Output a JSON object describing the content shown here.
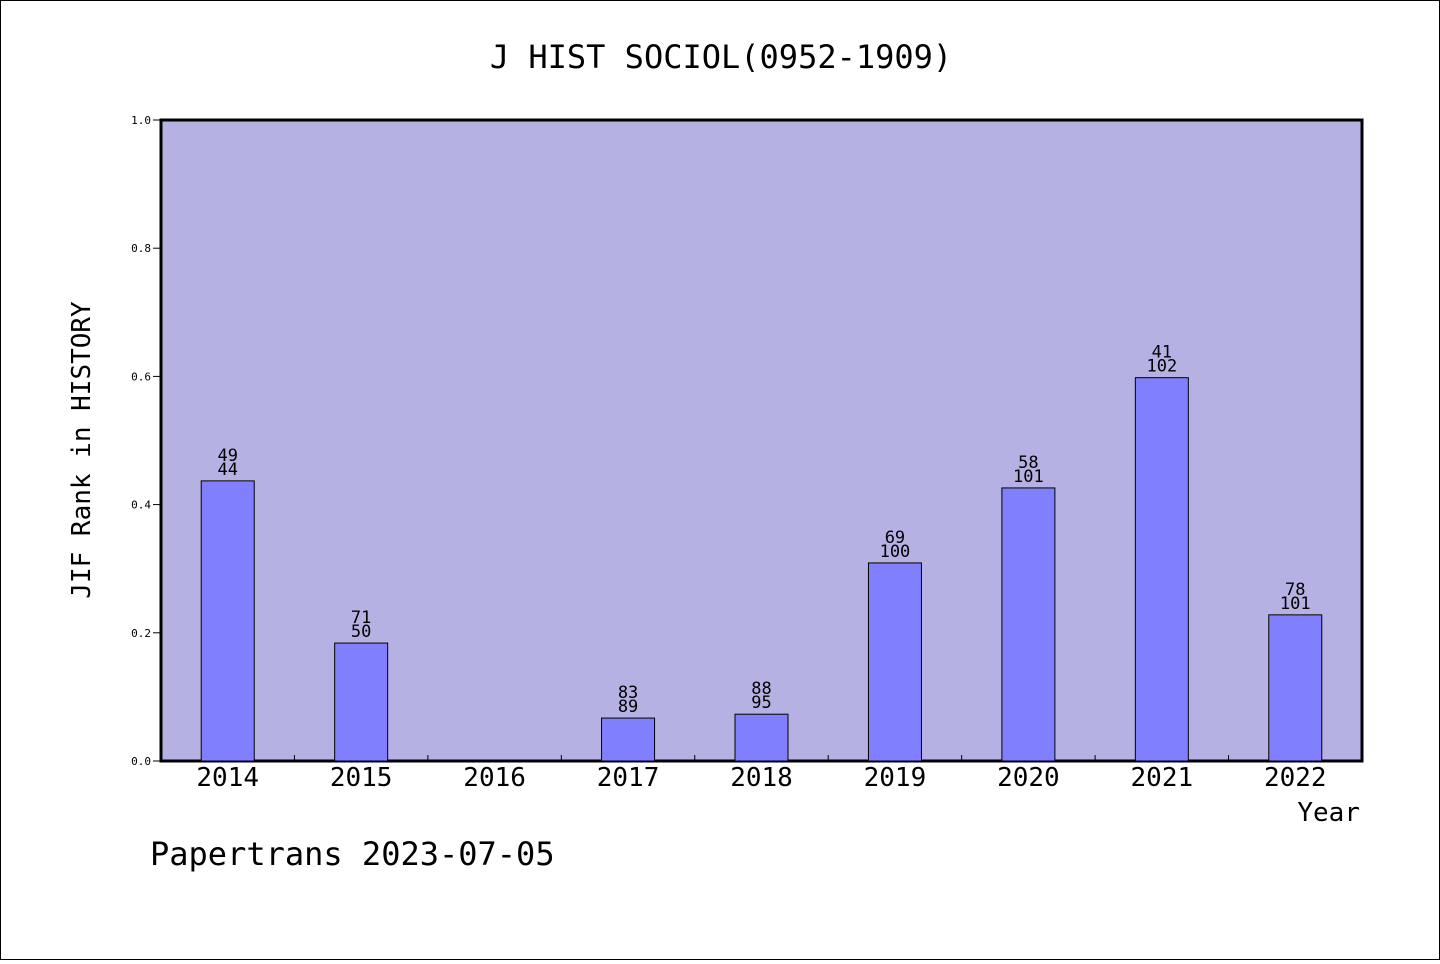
{
  "chart_data": {
    "type": "bar",
    "title": "J HIST SOCIOL(0952-1909)",
    "xlabel": "Year",
    "ylabel": "JIF Rank in HISTORY",
    "footer": "Papertrans 2023-07-05",
    "categories": [
      "2014",
      "2015",
      "2016",
      "2017",
      "2018",
      "2019",
      "2020",
      "2021",
      "2022"
    ],
    "values": [
      0.437,
      0.184,
      0.0,
      0.067,
      0.073,
      0.309,
      0.426,
      0.598,
      0.228
    ],
    "labels_top": [
      "49",
      "71",
      "",
      "83",
      "88",
      "69",
      "58",
      "41",
      "78"
    ],
    "labels_bottom": [
      "44",
      "50",
      "",
      "89",
      "95",
      "100",
      "101",
      "102",
      "101"
    ],
    "ylim": [
      0,
      1.0
    ],
    "yticks": [
      "0.0",
      "0.2",
      "0.4",
      "0.6",
      "0.8",
      "1.0"
    ],
    "colors": {
      "plot_background": "#b6b1e3",
      "bar": "#8080ff"
    },
    "grid": false,
    "legend": "none"
  }
}
